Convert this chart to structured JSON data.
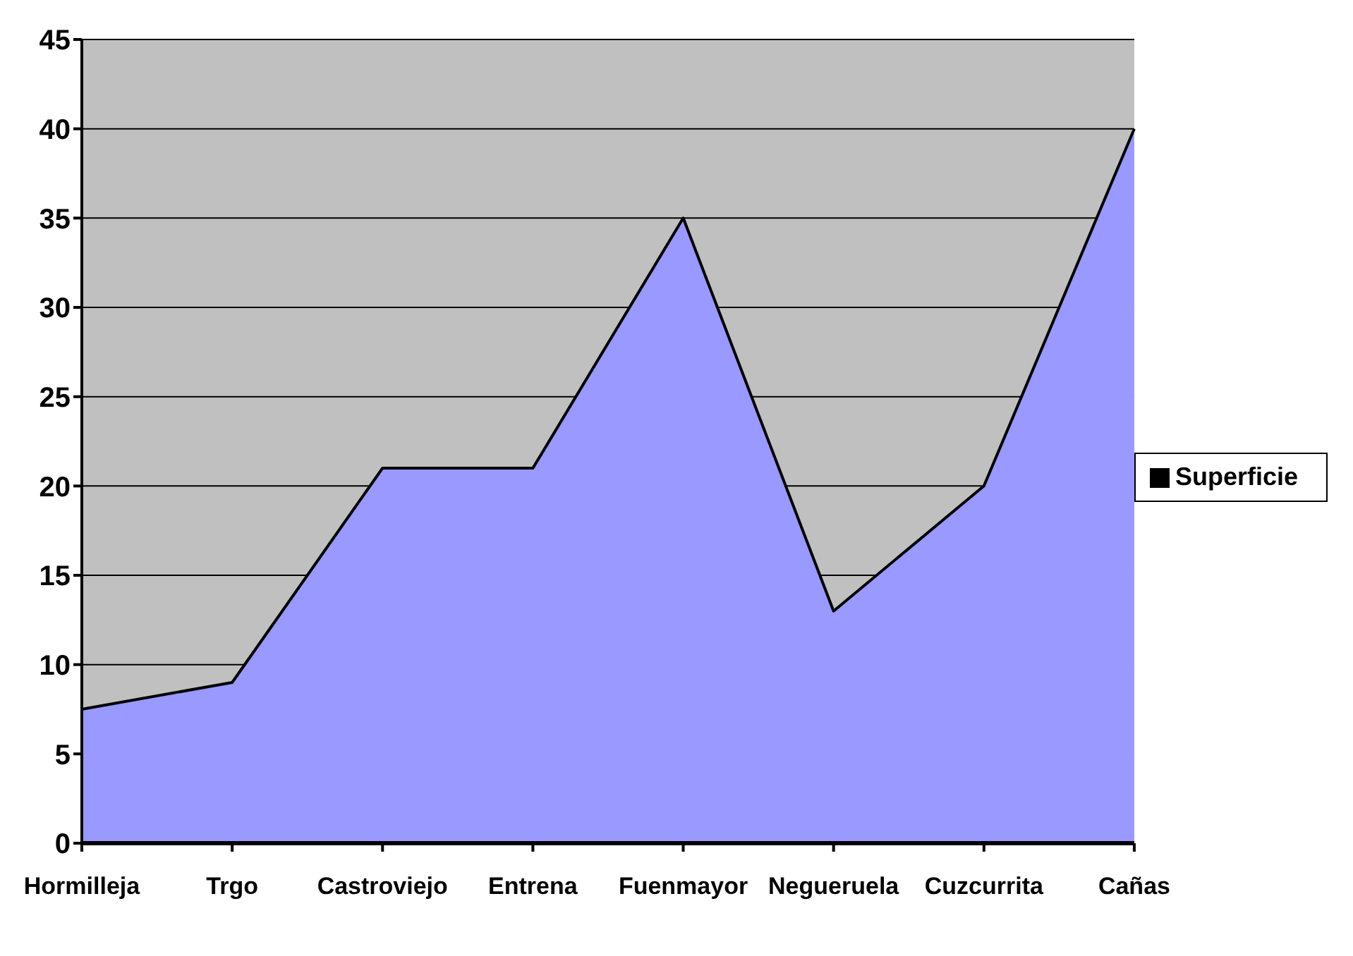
{
  "chart_data": {
    "type": "area",
    "categories": [
      "Hormilleja",
      "Trgo",
      "Castroviejo",
      "Entrena",
      "Fuenmayor",
      "Negueruela",
      "Cuzcurrita",
      "Cañas"
    ],
    "series": [
      {
        "name": "Superficie",
        "color": "#9999ff",
        "values": [
          7.5,
          9,
          21,
          21,
          35,
          13,
          20,
          40
        ]
      }
    ],
    "ylim": [
      0,
      45
    ],
    "yticks": [
      0,
      5,
      10,
      15,
      20,
      25,
      30,
      35,
      40,
      45
    ],
    "grid": "y",
    "legend": "right"
  }
}
